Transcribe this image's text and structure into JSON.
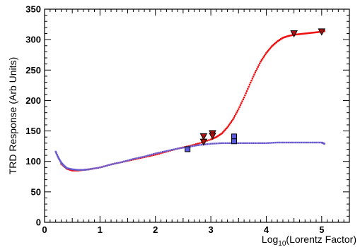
{
  "chart_data": {
    "type": "scatter",
    "title": "",
    "xlabel": "Log10(Lorentz Factor)",
    "xlabel_main": "Log",
    "xlabel_sub": "10",
    "xlabel_rest": "(Lorentz Factor)",
    "ylabel": "TRD Response (Arb Units)",
    "xlim": [
      0,
      5.5
    ],
    "ylim": [
      0,
      350
    ],
    "x_ticks": [
      0,
      1,
      2,
      3,
      4,
      5
    ],
    "y_ticks": [
      0,
      50,
      100,
      150,
      200,
      250,
      300,
      350
    ],
    "grid": false,
    "legend": "none",
    "series": [
      {
        "marker": "dot",
        "color": "#ee1111",
        "x": [
          0.3,
          0.4,
          0.5,
          0.6,
          0.7,
          0.8,
          1.0,
          1.2,
          1.4,
          1.6,
          1.8,
          2.0,
          2.2,
          2.4,
          2.6,
          2.8,
          3.0,
          3.1,
          3.2,
          3.3,
          3.4,
          3.5,
          3.6,
          3.7,
          3.8,
          3.9,
          4.0,
          4.1,
          4.2,
          4.3,
          4.4,
          4.5,
          4.6,
          4.7,
          4.8,
          4.9,
          5.0,
          5.05
        ],
        "y": [
          96,
          88,
          85,
          85,
          86,
          87,
          90,
          95,
          99,
          103,
          107,
          111,
          116,
          121,
          125,
          130,
          136,
          140,
          146,
          156,
          169,
          186,
          205,
          226,
          246,
          264,
          278,
          289,
          297,
          303,
          306,
          308,
          309,
          310,
          311,
          312,
          313,
          314
        ]
      },
      {
        "marker": "dot",
        "color": "#6a5acd",
        "x": [
          0.2,
          0.25,
          0.3,
          0.35,
          0.4,
          0.5,
          0.6,
          0.7,
          0.8,
          1.0,
          1.2,
          1.4,
          1.6,
          1.8,
          2.0,
          2.2,
          2.4,
          2.6,
          2.8,
          3.0,
          3.2,
          3.4,
          3.6,
          3.8,
          4.0,
          4.2,
          4.4,
          4.6,
          4.8,
          5.0,
          5.05
        ],
        "y": [
          116,
          106,
          98,
          93,
          89,
          87,
          86,
          86,
          87,
          90,
          95,
          99,
          104,
          108,
          113,
          117,
          121,
          124,
          127,
          129,
          130,
          130,
          130,
          130,
          130,
          131,
          131,
          131,
          131,
          131,
          129
        ]
      },
      {
        "marker": "triangle-down",
        "color": "#aa1111",
        "x": [
          2.87,
          2.87,
          3.03,
          3.03,
          4.5,
          5.0
        ],
        "y": [
          141,
          132,
          146,
          142,
          310,
          313
        ]
      },
      {
        "marker": "square",
        "color": "#5a5add",
        "x": [
          2.58,
          3.42,
          3.42
        ],
        "y": [
          120,
          141,
          133
        ]
      }
    ]
  }
}
